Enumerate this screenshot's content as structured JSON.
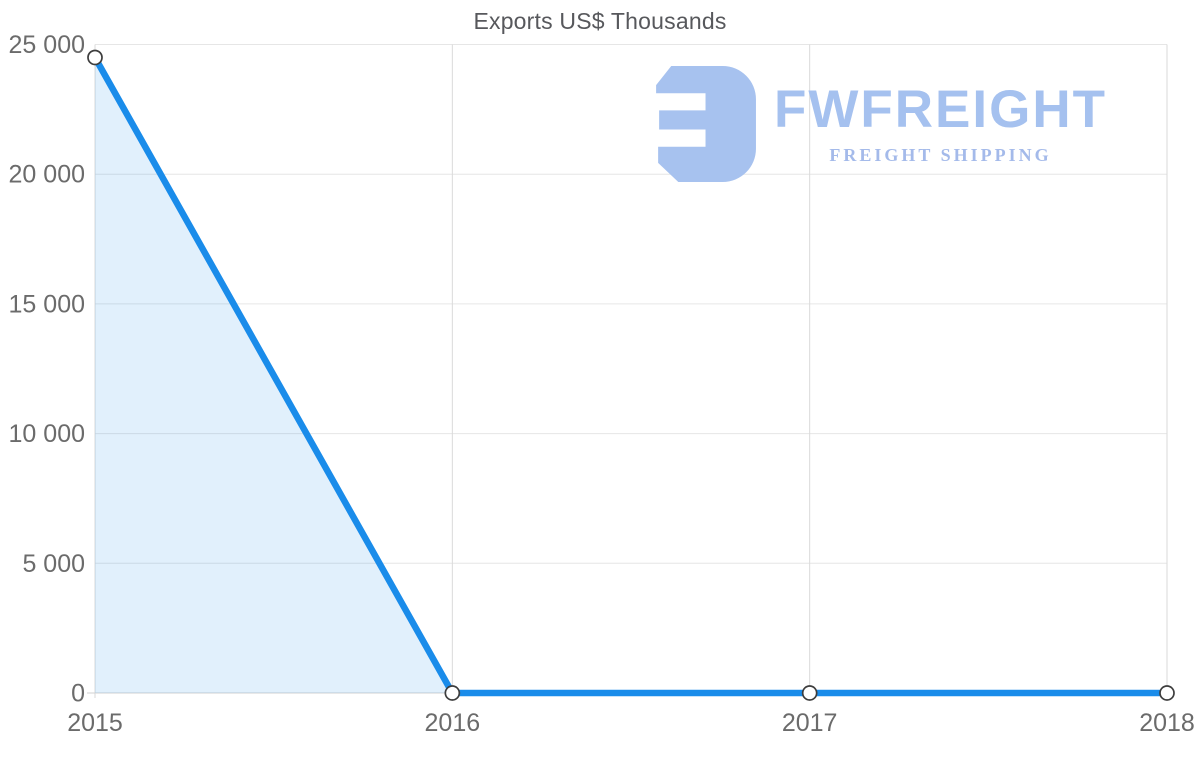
{
  "title": "Exports US$ Thousands",
  "watermark": {
    "brand": "FWFREIGHT",
    "tagline": "FREIGHT SHIPPING",
    "logo_icon": "fwfreight-f-mark",
    "color": "#a5c1ef"
  },
  "chart_data": {
    "type": "area",
    "title": "Exports US$ Thousands",
    "x": [
      2015,
      2016,
      2017,
      2018
    ],
    "x_tick_labels": [
      "2015",
      "2016",
      "2017",
      "2018"
    ],
    "series": [
      {
        "name": "Exports US$ Thousands",
        "values": [
          24500,
          0,
          0,
          0
        ]
      }
    ],
    "ylim": [
      0,
      25000
    ],
    "y_ticks": [
      {
        "value": 0,
        "label": "0"
      },
      {
        "value": 5000,
        "label": "5 000"
      },
      {
        "value": 10000,
        "label": "10 000"
      },
      {
        "value": 15000,
        "label": "15 000"
      },
      {
        "value": 20000,
        "label": "20 000"
      },
      {
        "value": 25000,
        "label": "25 000"
      }
    ],
    "grid": true,
    "legend": false,
    "line_color": "#1a8cea",
    "area_color": "rgba(26,140,234,0.13)",
    "marker_fill": "#ffffff",
    "marker_stroke": "#3d3d3d",
    "h_grid_color": "#e6e6e6",
    "v_grid_color": "#dadada",
    "axis_line_color": "#d2d2d2",
    "tick_label_color": "#6b6b6b"
  }
}
